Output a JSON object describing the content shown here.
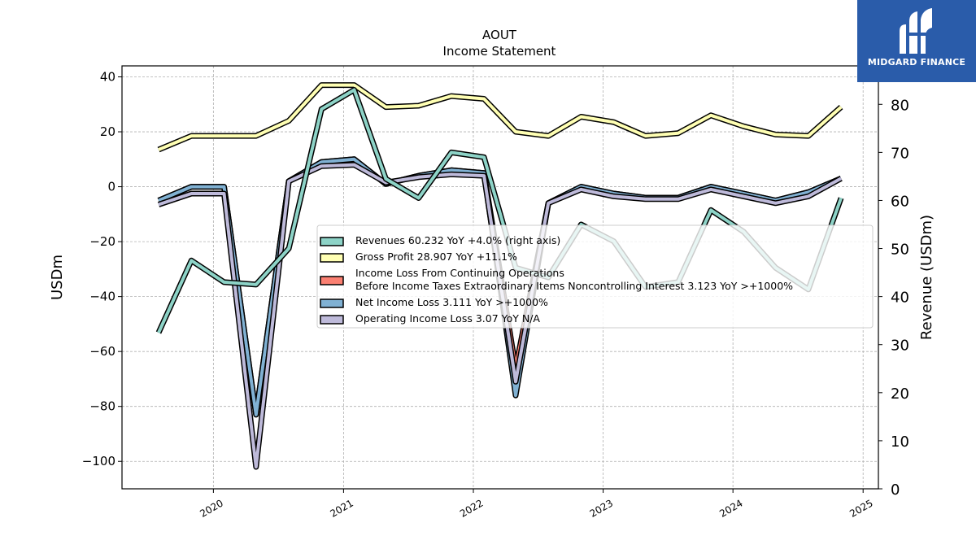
{
  "chart_data": {
    "type": "line",
    "title": "AOUT",
    "subtitle": "Income Statement",
    "ylabel": "USDm",
    "y2label": "Revenue (USDm)",
    "ylim": [
      -110,
      44
    ],
    "y2lim": [
      0,
      88
    ],
    "yticks": [
      40,
      20,
      0,
      -20,
      -40,
      -60,
      -80,
      -100
    ],
    "y2ticks": [
      0,
      10,
      20,
      30,
      40,
      50,
      60,
      70,
      80
    ],
    "xticks": [
      "2020",
      "2021",
      "2022",
      "2023",
      "2024",
      "2025"
    ],
    "grid": true,
    "legend_position": "center-right",
    "x": [
      "2019-07-31",
      "2019-10-31",
      "2020-01-31",
      "2020-04-30",
      "2020-07-31",
      "2020-10-31",
      "2021-01-31",
      "2021-04-30",
      "2021-07-31",
      "2021-10-31",
      "2022-01-31",
      "2022-04-30",
      "2022-07-31",
      "2022-10-31",
      "2023-01-31",
      "2023-04-30",
      "2023-07-31",
      "2023-10-31",
      "2024-01-31",
      "2024-04-30",
      "2024-07-31",
      "2024-10-31"
    ],
    "series": [
      {
        "name": "Gross Profit  28.907 YoY +11.1%",
        "axis": "left",
        "color": "#ffffb3",
        "values": [
          13.5,
          18.5,
          18.5,
          18.5,
          24,
          37,
          37,
          29,
          29.5,
          33,
          32,
          20,
          18.5,
          25.5,
          23.5,
          18.5,
          19.5,
          26,
          22,
          19,
          18.5,
          29
        ]
      },
      {
        "name": "Income Loss From Continuing Operations\nBefore Income Taxes Extraordinary Items Noncontrolling Interest  3.123 YoY >+1000%",
        "axis": "left",
        "color": "#fb8072",
        "values": [
          -5,
          0,
          0,
          -83,
          2,
          9,
          10,
          1,
          4,
          6,
          5,
          -66,
          -6,
          0,
          -2.5,
          -4,
          -4,
          0,
          -2.5,
          -5,
          -2,
          3
        ]
      },
      {
        "name": "Net Income Loss  3.111 YoY >+1000%",
        "axis": "left",
        "color": "#80b1d3",
        "values": [
          -5,
          0,
          0,
          -83,
          2,
          9,
          10,
          1,
          4,
          6,
          5,
          -76,
          -6,
          0,
          -2.5,
          -4,
          -4,
          0,
          -2.5,
          -5,
          -2,
          3
        ]
      },
      {
        "name": "Operating Income Loss  3.07 YoY N/A",
        "axis": "left",
        "color": "#bebada",
        "values": [
          -6.5,
          -2.5,
          -2.5,
          -102,
          2,
          7.5,
          8,
          1.5,
          3.5,
          4.5,
          4,
          -71,
          -6,
          -1,
          -3.5,
          -4.5,
          -4.5,
          -1,
          -3.5,
          -6,
          -3.5,
          3
        ]
      },
      {
        "name": "Revenues  60.232 YoY +4.0% (right axis)",
        "axis": "right",
        "color": "#8dd3c7",
        "values": [
          32.5,
          47.5,
          43,
          42.5,
          50,
          79,
          83,
          64.5,
          60.5,
          70,
          69,
          46,
          44,
          55,
          51.5,
          42,
          43,
          58,
          53.5,
          46,
          41.5,
          60.5
        ]
      }
    ]
  },
  "logo": {
    "text": "MIDGARD FINANCE"
  }
}
